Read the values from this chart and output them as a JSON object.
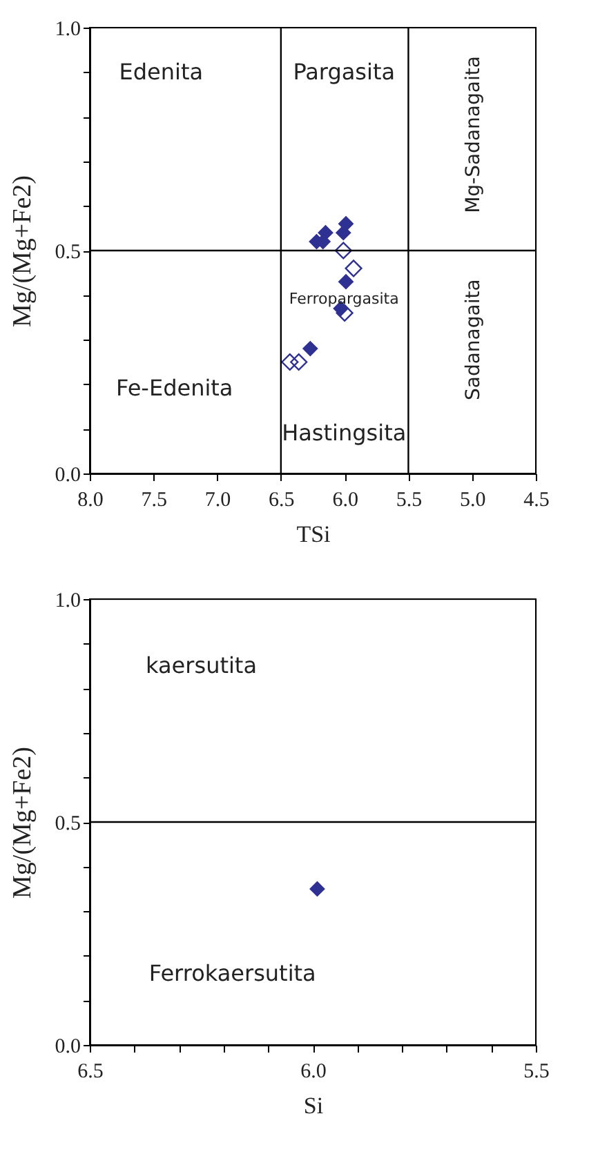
{
  "chart_data": [
    {
      "type": "scatter",
      "xlabel": "TSi",
      "ylabel": "Mg/(Mg+Fe2)",
      "xlim": [
        8.0,
        4.5
      ],
      "ylim": [
        0.0,
        1.0
      ],
      "xticks": [
        {
          "value": 8.0,
          "label": "8.0"
        },
        {
          "value": 7.5,
          "label": "7.5"
        },
        {
          "value": 7.0,
          "label": "7.0"
        },
        {
          "value": 6.5,
          "label": "6.5"
        },
        {
          "value": 6.0,
          "label": "6.0"
        },
        {
          "value": 5.5,
          "label": "5.5"
        },
        {
          "value": 5.0,
          "label": "5.0"
        },
        {
          "value": 4.5,
          "label": "4.5"
        }
      ],
      "yticks": [
        {
          "value": 0.0,
          "label": "0.0"
        },
        {
          "value": 0.1,
          "label": null
        },
        {
          "value": 0.2,
          "label": null
        },
        {
          "value": 0.3,
          "label": null
        },
        {
          "value": 0.4,
          "label": null
        },
        {
          "value": 0.5,
          "label": "0.5"
        },
        {
          "value": 0.6,
          "label": null
        },
        {
          "value": 0.7,
          "label": null
        },
        {
          "value": 0.8,
          "label": null
        },
        {
          "value": 0.9,
          "label": null
        },
        {
          "value": 1.0,
          "label": "1.0"
        }
      ],
      "grid": false,
      "marker": "diamond",
      "series": [
        {
          "color": "#2e3192",
          "x": [
            6.22,
            6.15,
            6.17,
            5.99,
            6.01,
            5.99,
            6.03,
            6.27
          ],
          "values": [
            0.52,
            0.54,
            0.52,
            0.56,
            0.54,
            0.43,
            0.37,
            0.28
          ]
        },
        {
          "color": "#2e3192",
          "x": [
            6.01,
            5.93,
            6.0,
            6.43,
            6.36
          ],
          "values": [
            0.5,
            0.46,
            0.36,
            0.25,
            0.25
          ]
        }
      ],
      "ref_lines": [
        {
          "axis": "x",
          "value": 6.5
        },
        {
          "axis": "x",
          "value": 5.5
        },
        {
          "axis": "y",
          "value": 0.5
        }
      ],
      "annotations": [
        "Edenita",
        "Pargasita",
        "Fe-Edenita",
        "Hastingsita",
        "Ferropargasita",
        "Mg-Sadanagaita",
        "Sadanagaita"
      ]
    },
    {
      "type": "scatter",
      "xlabel": "Si",
      "ylabel": "Mg/(Mg+Fe2)",
      "xlim": [
        6.5,
        5.5
      ],
      "ylim": [
        0.0,
        1.0
      ],
      "xticks": [
        {
          "value": 6.5,
          "label": "6.5"
        },
        {
          "value": 6.4,
          "label": null
        },
        {
          "value": 6.3,
          "label": null
        },
        {
          "value": 6.2,
          "label": null
        },
        {
          "value": 6.1,
          "label": null
        },
        {
          "value": 6.0,
          "label": "6.0"
        },
        {
          "value": 5.9,
          "label": null
        },
        {
          "value": 5.8,
          "label": null
        },
        {
          "value": 5.7,
          "label": null
        },
        {
          "value": 5.6,
          "label": null
        },
        {
          "value": 5.5,
          "label": "5.5"
        }
      ],
      "yticks": [
        {
          "value": 0.0,
          "label": "0.0"
        },
        {
          "value": 0.1,
          "label": null
        },
        {
          "value": 0.2,
          "label": null
        },
        {
          "value": 0.3,
          "label": null
        },
        {
          "value": 0.4,
          "label": null
        },
        {
          "value": 0.5,
          "label": "0.5"
        },
        {
          "value": 0.6,
          "label": null
        },
        {
          "value": 0.7,
          "label": null
        },
        {
          "value": 0.8,
          "label": null
        },
        {
          "value": 0.9,
          "label": null
        },
        {
          "value": 1.0,
          "label": "1.0"
        }
      ],
      "grid": false,
      "marker": "diamond",
      "series": [
        {
          "color": "#2e3192",
          "x": [
            5.99
          ],
          "values": [
            0.35
          ]
        }
      ],
      "ref_lines": [
        {
          "axis": "y",
          "value": 0.5
        }
      ],
      "annotations": [
        "kaersutita",
        "Ferrokaersutita"
      ]
    }
  ]
}
